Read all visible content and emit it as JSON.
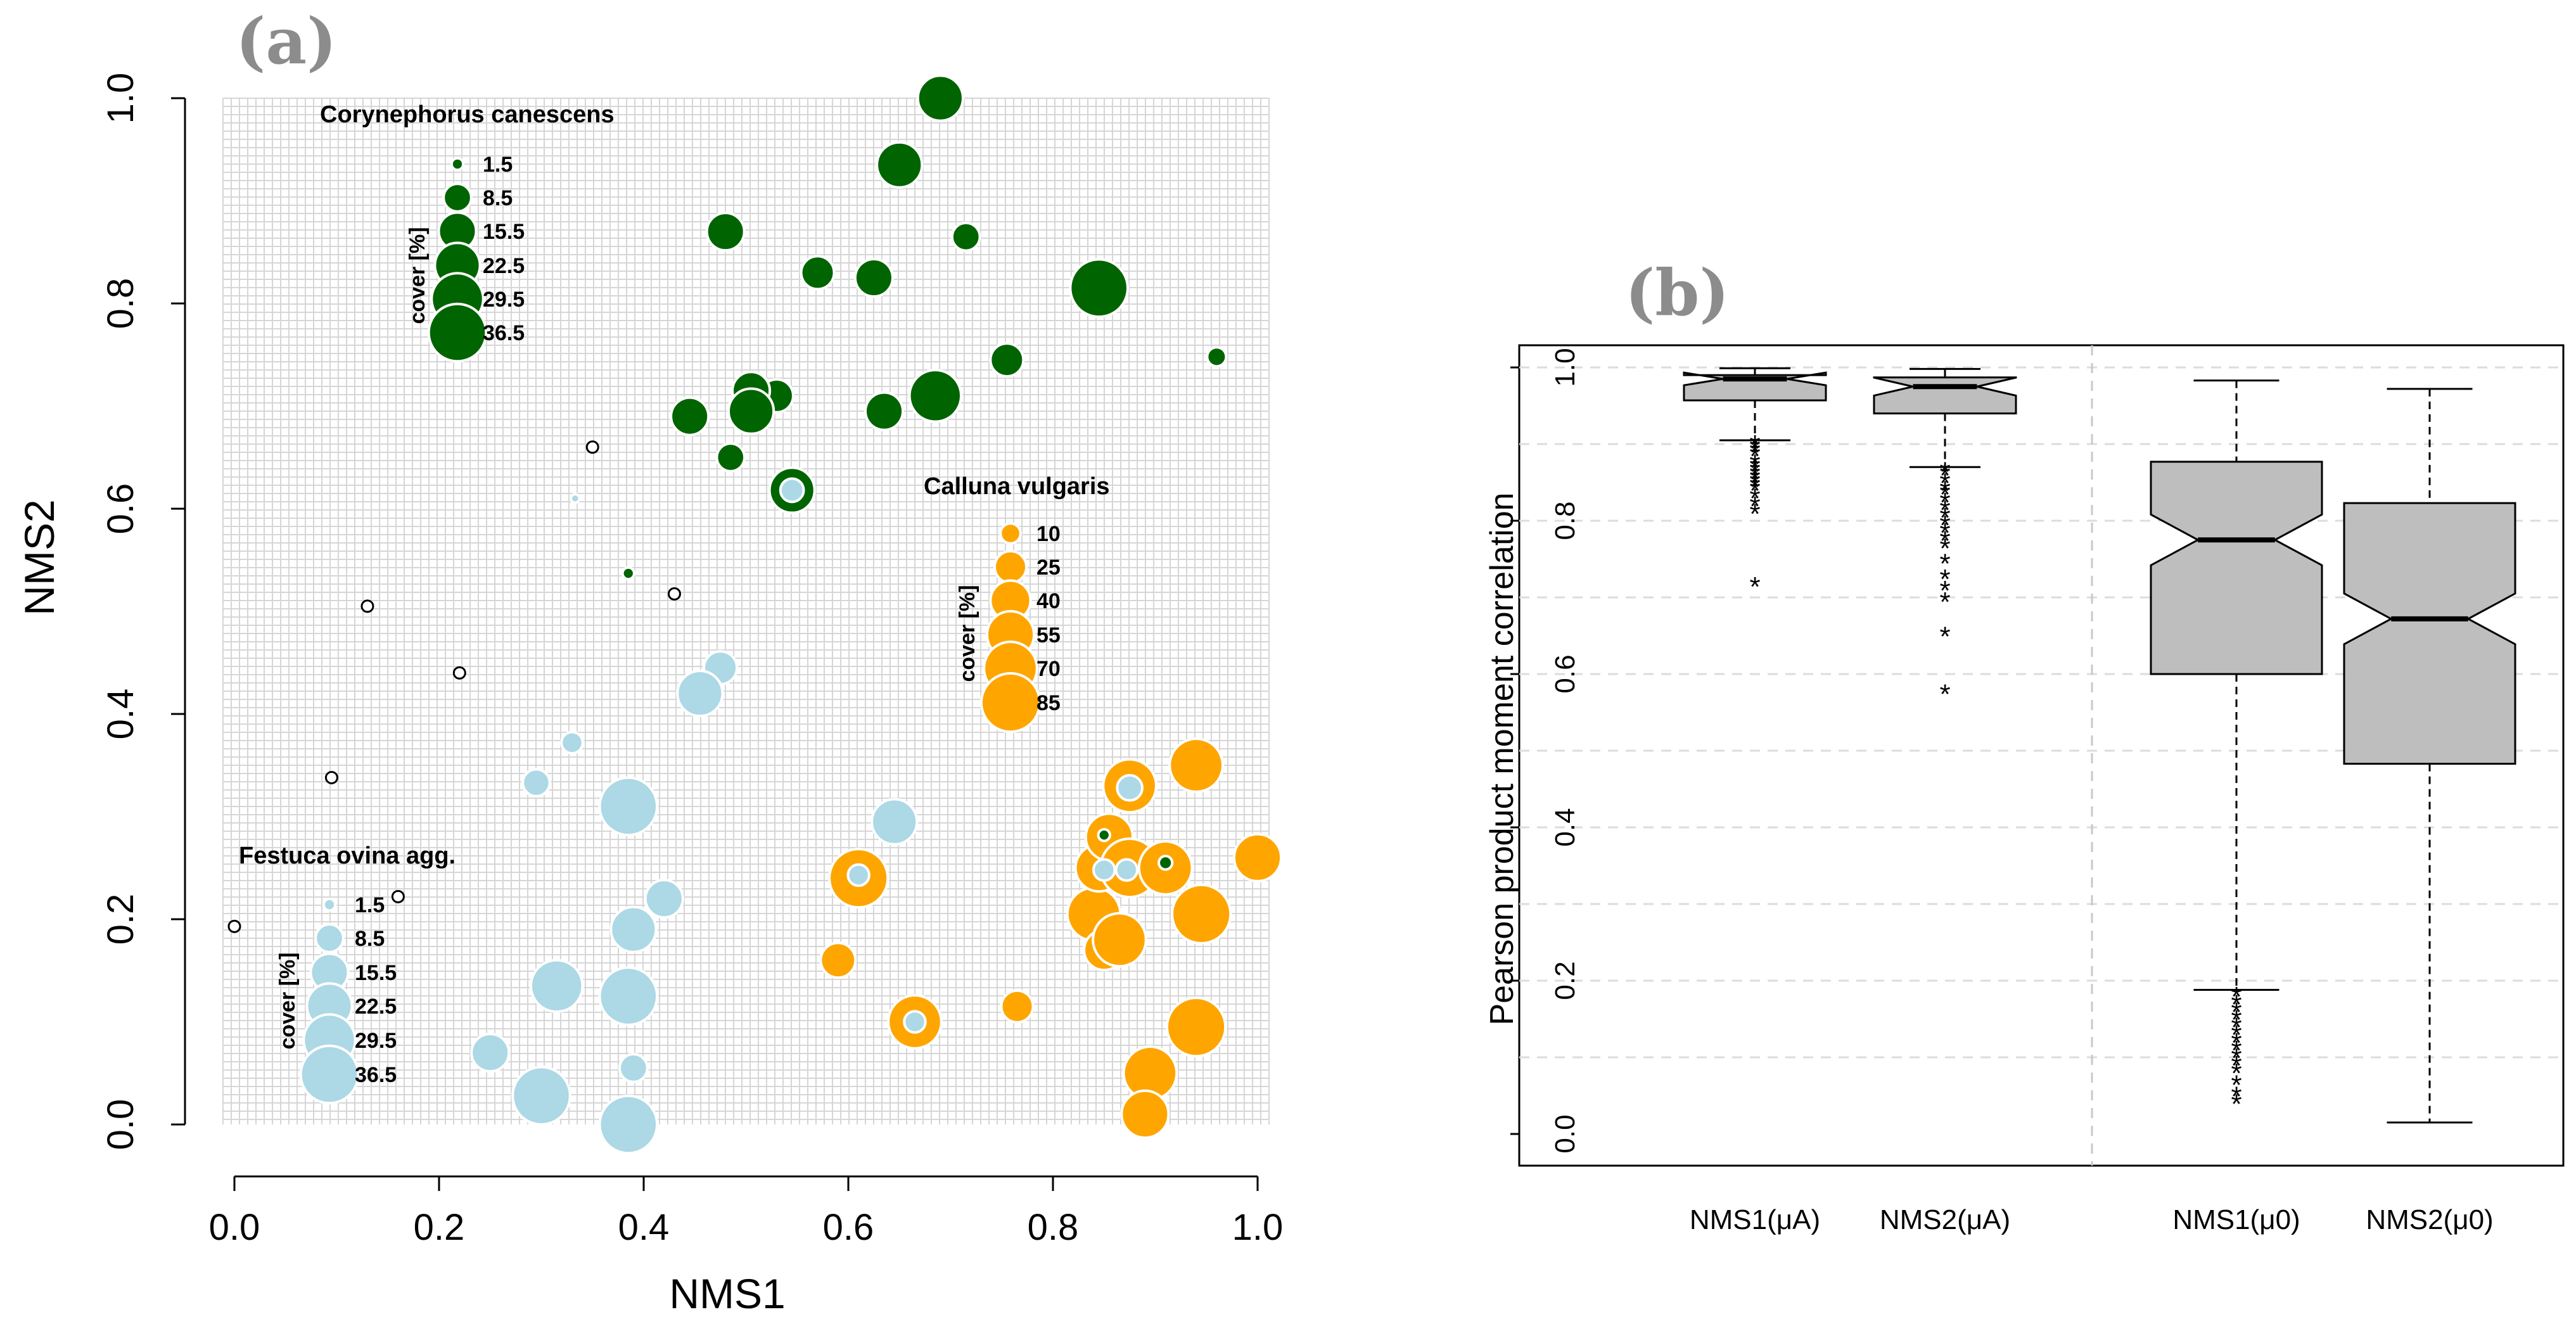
{
  "chart_data": [
    {
      "panel": "(a)",
      "type": "scatter",
      "xlabel": "NMS1",
      "ylabel": "NMS2",
      "xlim": [
        0,
        1
      ],
      "ylim": [
        0,
        1
      ],
      "xticks": [
        "0.0",
        "0.2",
        "0.4",
        "0.6",
        "0.8",
        "1.0"
      ],
      "yticks": [
        "0.0",
        "0.2",
        "0.4",
        "0.6",
        "0.8",
        "1.0"
      ],
      "grid": "dense",
      "colors": {
        "corynephorus": "#006400",
        "calluna": "#FFA500",
        "festuca": "#ADD8E6",
        "other": "#000000"
      },
      "legends": [
        {
          "id": "corynephorus",
          "title": "Corynephorus canescens",
          "unit": "cover [%]",
          "color": "#006400",
          "labels": [
            "1.5",
            "8.5",
            "15.5",
            "22.5",
            "29.5",
            "36.5"
          ],
          "values": [
            1.5,
            8.5,
            15.5,
            22.5,
            29.5,
            36.5
          ]
        },
        {
          "id": "calluna",
          "title": "Calluna vulgaris",
          "unit": "cover [%]",
          "color": "#FFA500",
          "labels": [
            "10",
            "25",
            "40",
            "55",
            "70",
            "85"
          ],
          "values": [
            10,
            25,
            40,
            55,
            70,
            85
          ]
        },
        {
          "id": "festuca",
          "title": "Festuca ovina agg.",
          "unit": "cover [%]",
          "color": "#ADD8E6",
          "labels": [
            "1.5",
            "8.5",
            "15.5",
            "22.5",
            "29.5",
            "36.5"
          ],
          "values": [
            1.5,
            8.5,
            15.5,
            22.5,
            29.5,
            36.5
          ]
        }
      ],
      "series": [
        {
          "name": "Calluna vulgaris",
          "key": "calluna",
          "points": [
            {
              "x": 0.59,
              "y": 0.16,
              "cover": 30
            },
            {
              "x": 0.61,
              "y": 0.24,
              "cover": 85
            },
            {
              "x": 0.665,
              "y": 0.1,
              "cover": 70
            },
            {
              "x": 0.765,
              "y": 0.115,
              "cover": 25
            },
            {
              "x": 0.84,
              "y": 0.205,
              "cover": 70
            },
            {
              "x": 0.85,
              "y": 0.17,
              "cover": 40
            },
            {
              "x": 0.845,
              "y": 0.25,
              "cover": 55
            },
            {
              "x": 0.855,
              "y": 0.28,
              "cover": 55
            },
            {
              "x": 0.865,
              "y": 0.18,
              "cover": 70
            },
            {
              "x": 0.875,
              "y": 0.25,
              "cover": 85
            },
            {
              "x": 0.875,
              "y": 0.33,
              "cover": 70
            },
            {
              "x": 0.91,
              "y": 0.25,
              "cover": 70
            },
            {
              "x": 0.94,
              "y": 0.35,
              "cover": 70
            },
            {
              "x": 0.945,
              "y": 0.205,
              "cover": 85
            },
            {
              "x": 0.94,
              "y": 0.095,
              "cover": 85
            },
            {
              "x": 0.895,
              "y": 0.05,
              "cover": 70
            },
            {
              "x": 0.89,
              "y": 0.01,
              "cover": 55
            },
            {
              "x": 1.0,
              "y": 0.26,
              "cover": 55
            }
          ]
        },
        {
          "name": "Corynephorus canescens",
          "key": "corynephorus",
          "points": [
            {
              "x": 0.69,
              "y": 1.0,
              "cover": 22.5
            },
            {
              "x": 0.65,
              "y": 0.935,
              "cover": 22.5
            },
            {
              "x": 0.715,
              "y": 0.865,
              "cover": 8.5
            },
            {
              "x": 0.48,
              "y": 0.87,
              "cover": 15.5
            },
            {
              "x": 0.57,
              "y": 0.83,
              "cover": 12
            },
            {
              "x": 0.625,
              "y": 0.825,
              "cover": 15.5
            },
            {
              "x": 0.845,
              "y": 0.815,
              "cover": 36.5
            },
            {
              "x": 0.755,
              "y": 0.745,
              "cover": 12
            },
            {
              "x": 0.96,
              "y": 0.748,
              "cover": 4
            },
            {
              "x": 0.685,
              "y": 0.71,
              "cover": 29.5
            },
            {
              "x": 0.635,
              "y": 0.695,
              "cover": 15.5
            },
            {
              "x": 0.53,
              "y": 0.71,
              "cover": 12
            },
            {
              "x": 0.505,
              "y": 0.715,
              "cover": 15.5
            },
            {
              "x": 0.505,
              "y": 0.695,
              "cover": 22.5
            },
            {
              "x": 0.445,
              "y": 0.69,
              "cover": 15.5
            },
            {
              "x": 0.485,
              "y": 0.65,
              "cover": 8.5
            },
            {
              "x": 0.545,
              "y": 0.618,
              "cover": 22.5
            },
            {
              "x": 0.385,
              "y": 0.537,
              "cover": 1.5
            },
            {
              "x": 0.85,
              "y": 0.282,
              "cover": 1.5
            },
            {
              "x": 0.91,
              "y": 0.255,
              "cover": 2
            }
          ]
        },
        {
          "name": "Festuca ovina agg.",
          "key": "festuca",
          "points": [
            {
              "x": 0.545,
              "y": 0.618,
              "cover": 6
            },
            {
              "x": 0.333,
              "y": 0.61,
              "cover": 0.8
            },
            {
              "x": 0.475,
              "y": 0.445,
              "cover": 12
            },
            {
              "x": 0.455,
              "y": 0.42,
              "cover": 22.5
            },
            {
              "x": 0.33,
              "y": 0.372,
              "cover": 5
            },
            {
              "x": 0.295,
              "y": 0.333,
              "cover": 8
            },
            {
              "x": 0.385,
              "y": 0.31,
              "cover": 36.5
            },
            {
              "x": 0.645,
              "y": 0.295,
              "cover": 22.5
            },
            {
              "x": 0.875,
              "y": 0.328,
              "cover": 7
            },
            {
              "x": 0.61,
              "y": 0.243,
              "cover": 5
            },
            {
              "x": 0.85,
              "y": 0.248,
              "cover": 5
            },
            {
              "x": 0.872,
              "y": 0.248,
              "cover": 5
            },
            {
              "x": 0.42,
              "y": 0.22,
              "cover": 15.5
            },
            {
              "x": 0.39,
              "y": 0.19,
              "cover": 22.5
            },
            {
              "x": 0.315,
              "y": 0.135,
              "cover": 29.5
            },
            {
              "x": 0.385,
              "y": 0.125,
              "cover": 36.5
            },
            {
              "x": 0.665,
              "y": 0.1,
              "cover": 5
            },
            {
              "x": 0.25,
              "y": 0.07,
              "cover": 15.5
            },
            {
              "x": 0.39,
              "y": 0.055,
              "cover": 8.5
            },
            {
              "x": 0.3,
              "y": 0.028,
              "cover": 36.5
            },
            {
              "x": 0.385,
              "y": 0.0,
              "cover": 36.5
            }
          ]
        },
        {
          "name": "other plots",
          "key": "other",
          "points": [
            {
              "x": 0.35,
              "y": 0.66
            },
            {
              "x": 0.13,
              "y": 0.505
            },
            {
              "x": 0.43,
              "y": 0.517
            },
            {
              "x": 0.22,
              "y": 0.44
            },
            {
              "x": 0.095,
              "y": 0.338
            },
            {
              "x": 0.0,
              "y": 0.193
            },
            {
              "x": 0.16,
              "y": 0.222
            }
          ]
        }
      ]
    },
    {
      "panel": "(b)",
      "type": "box",
      "ylabel": "Pearson product moment correlation",
      "ylim": [
        0,
        1
      ],
      "yticks": [
        "0.0",
        "0.2",
        "0.4",
        "0.6",
        "0.8",
        "1.0"
      ],
      "categories": [
        "NMS1(μA)",
        "NMS2(μA)",
        "NMS1(μ0)",
        "NMS2(μ0)"
      ],
      "boxes": [
        {
          "label": "NMS1(μA)",
          "whisker_low": 0.905,
          "q1": 0.957,
          "median": 0.985,
          "q3": 0.99,
          "whisker_high": 0.999,
          "outliers": [
            0.9,
            0.895,
            0.89,
            0.885,
            0.875,
            0.87,
            0.865,
            0.86,
            0.855,
            0.85,
            0.845,
            0.84,
            0.83,
            0.82,
            0.81,
            0.715
          ]
        },
        {
          "label": "NMS2(μA)",
          "whisker_low": 0.87,
          "q1": 0.94,
          "median": 0.975,
          "q3": 0.987,
          "whisker_high": 0.998,
          "outliers": [
            0.865,
            0.86,
            0.85,
            0.84,
            0.835,
            0.825,
            0.815,
            0.805,
            0.795,
            0.785,
            0.775,
            0.765,
            0.745,
            0.725,
            0.71,
            0.695,
            0.65,
            0.575
          ]
        },
        {
          "label": "NMS1(μ0)",
          "whisker_low": 0.188,
          "q1": 0.6,
          "median": 0.775,
          "q3": 0.877,
          "whisker_high": 0.983,
          "outliers": [
            0.18,
            0.17,
            0.16,
            0.15,
            0.14,
            0.13,
            0.12,
            0.11,
            0.1,
            0.09,
            0.08,
            0.065,
            0.05,
            0.04
          ]
        },
        {
          "label": "NMS2(μ0)",
          "whisker_low": 0.015,
          "q1": 0.483,
          "median": 0.672,
          "q3": 0.823,
          "whisker_high": 0.972,
          "outliers": []
        }
      ]
    }
  ]
}
